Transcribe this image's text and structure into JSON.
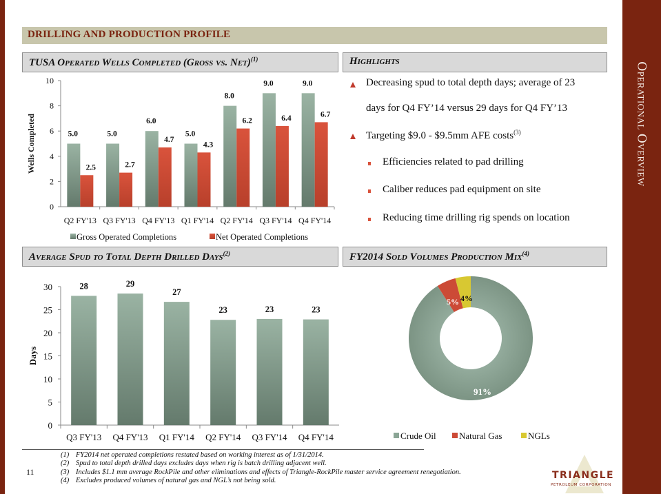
{
  "side_title": "Operational Overview",
  "section_title": "DRILLING AND PRODUCTION PROFILE",
  "headers": {
    "wells": {
      "text": "TUSA Operated Wells Completed (Gross vs. Net)",
      "sup": "(1)"
    },
    "highlights": {
      "text": "Highlights",
      "sup": ""
    },
    "days": {
      "text": "Average Spud to Total Depth Drilled Days",
      "sup": "(2)"
    },
    "mix": {
      "text": "FY2014 Sold Volumes Production Mix",
      "sup": "(4)"
    }
  },
  "highlights": [
    {
      "level": 1,
      "lines": [
        "Decreasing spud to total depth days; average of 23",
        "days for Q4 FY’14 versus 29 days for Q4 FY’13"
      ],
      "sup": ""
    },
    {
      "level": 1,
      "lines": [
        "Targeting $9.0 - $9.5mm AFE costs"
      ],
      "sup": "(3)"
    },
    {
      "level": 2,
      "lines": [
        "Efficiencies related to pad drilling"
      ],
      "sup": ""
    },
    {
      "level": 2,
      "lines": [
        "Caliber reduces pad equipment on site"
      ],
      "sup": ""
    },
    {
      "level": 2,
      "lines": [
        "Reducing time drilling rig spends on location"
      ],
      "sup": ""
    }
  ],
  "colors": {
    "brand_red": "#7a2410",
    "gross_green": "#8aa595",
    "net_red": "#cc4a36",
    "ngl_yellow": "#d8c832",
    "band_tan": "#c8c6ac"
  },
  "chart_data": [
    {
      "type": "bar",
      "title": "TUSA Operated Wells Completed (Gross vs. Net)",
      "xlabel": "",
      "ylabel": "Wells Completed",
      "ylim": [
        0,
        10
      ],
      "yticks": [
        0,
        2,
        4,
        6,
        8,
        10
      ],
      "grid": false,
      "legend": "bottom",
      "categories": [
        "Q2 FY'13",
        "Q3 FY'13",
        "Q4 FY'13",
        "Q1 FY'14",
        "Q2 FY'14",
        "Q3 FY'14",
        "Q4 FY'14"
      ],
      "series": [
        {
          "name": "Gross Operated Completions",
          "values": [
            5.0,
            5.0,
            6.0,
            5.0,
            8.0,
            9.0,
            9.0
          ],
          "labels": [
            "5.0",
            "5.0",
            "6.0",
            "5.0",
            "8.0",
            "9.0",
            "9.0"
          ],
          "color": "#8aa595"
        },
        {
          "name": "Net Operated Completions",
          "values": [
            2.5,
            2.7,
            4.7,
            4.3,
            6.2,
            6.4,
            6.7
          ],
          "labels": [
            "2.5",
            "2.7",
            "4.7",
            "4.3",
            "6.2",
            "6.4",
            "6.7"
          ],
          "color": "#cc4a36"
        }
      ]
    },
    {
      "type": "bar",
      "title": "Average Spud to Total Depth Drilled Days",
      "xlabel": "",
      "ylabel": "Days",
      "ylim": [
        0,
        30
      ],
      "yticks": [
        0,
        5,
        10,
        15,
        20,
        25,
        30
      ],
      "grid": false,
      "legend": "none",
      "categories": [
        "Q3 FY'13",
        "Q4 FY'13",
        "Q1 FY'14",
        "Q2 FY'14",
        "Q3 FY'14",
        "Q4 FY'14"
      ],
      "values": [
        28.0,
        28.5,
        26.7,
        22.8,
        23.0,
        22.9
      ],
      "labels": [
        "28",
        "29",
        "27",
        "23",
        "23",
        "23"
      ],
      "color": "#8aa595"
    },
    {
      "type": "pie",
      "donut": true,
      "title": "FY2014 Sold Volumes Production Mix",
      "legend": "bottom",
      "categories": [
        "Crude Oil",
        "Natural Gas",
        "NGLs"
      ],
      "values": [
        91,
        5,
        4
      ],
      "labels": [
        "91%",
        "5%",
        "4%"
      ],
      "colors": [
        "#8aa595",
        "#cc4a36",
        "#d8c832"
      ]
    }
  ],
  "footer": {
    "page_number": "11",
    "footnotes": [
      {
        "num": "(1)",
        "text": "FY2014 net operated completions restated based on working interest as of 1/31/2014."
      },
      {
        "num": "(2)",
        "text": "Spud to total depth drilled days excludes days when rig is batch drilling adjacent well."
      },
      {
        "num": "(3)",
        "text": "Includes $1.1 mm average RockPile and other eliminations and effects of Triangle-RockPile master service agreement renegotiation."
      },
      {
        "num": "(4)",
        "text": "Excludes produced volumes of natural gas and NGL’s not being sold."
      }
    ],
    "logo": {
      "name": "TRIANGLE",
      "subtitle": "PETROLEUM CORPORATION"
    }
  }
}
